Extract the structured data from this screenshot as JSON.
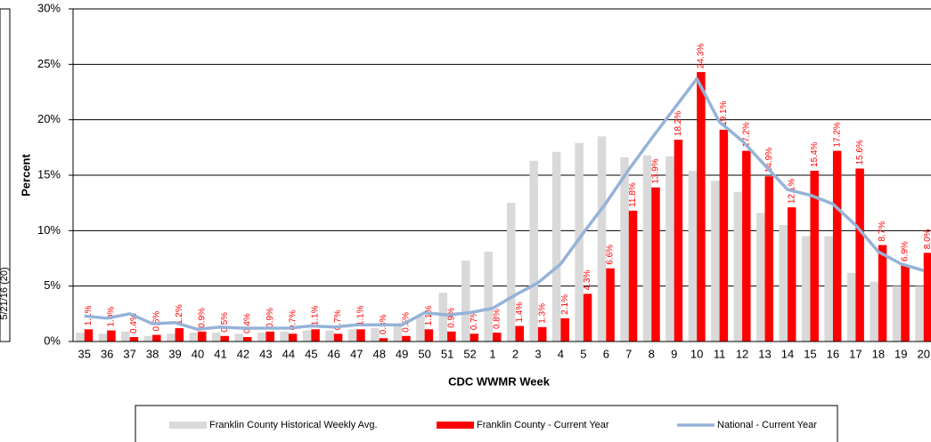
{
  "side_panel": {
    "label": "5/21/16 (20)"
  },
  "chart_data": {
    "type": "bar",
    "x_label": "CDC WWMR Week",
    "y_label": "Percent",
    "categories": [
      "35",
      "36",
      "37",
      "38",
      "39",
      "40",
      "41",
      "42",
      "43",
      "44",
      "45",
      "46",
      "47",
      "48",
      "49",
      "50",
      "51",
      "52",
      "1",
      "2",
      "3",
      "4",
      "5",
      "6",
      "7",
      "8",
      "9",
      "10",
      "11",
      "12",
      "13",
      "14",
      "15",
      "16",
      "17",
      "18",
      "19",
      "20"
    ],
    "ylim": [
      0,
      30
    ],
    "yticks": [
      {
        "value": 0,
        "label": "0%"
      },
      {
        "value": 5,
        "label": "5%"
      },
      {
        "value": 10,
        "label": "10%"
      },
      {
        "value": 15,
        "label": "15%"
      },
      {
        "value": 20,
        "label": "20%"
      },
      {
        "value": 25,
        "label": "25%"
      },
      {
        "value": 30,
        "label": "30%"
      }
    ],
    "grid": true,
    "series": [
      {
        "name": "Franklin County Historical Weekly Avg.",
        "color": "#d9d9d9",
        "kind": "bar",
        "values": [
          0.8,
          0.7,
          0.9,
          0.5,
          0.7,
          0.8,
          0.8,
          0.7,
          0.8,
          0.9,
          1.0,
          1.0,
          1.1,
          1.2,
          1.5,
          2.3,
          4.4,
          7.3,
          8.1,
          12.5,
          16.3,
          17.1,
          17.9,
          18.5,
          16.6,
          16.8,
          16.7,
          15.4,
          14.5,
          13.5,
          11.6,
          10.5,
          9.5,
          9.5,
          6.2,
          5.4,
          5.0,
          5.0
        ]
      },
      {
        "name": "Franklin County - Current Year",
        "color": "#ff0000",
        "kind": "bar",
        "values": [
          1.1,
          1.0,
          0.4,
          0.6,
          1.2,
          0.9,
          0.5,
          0.4,
          0.9,
          0.7,
          1.1,
          0.7,
          1.1,
          0.3,
          0.5,
          1.1,
          0.9,
          0.7,
          0.8,
          1.4,
          1.3,
          2.1,
          4.3,
          6.6,
          11.8,
          13.9,
          18.2,
          24.3,
          19.1,
          17.2,
          14.9,
          12.1,
          15.4,
          17.2,
          15.6,
          8.7,
          6.9,
          8.0
        ],
        "value_labels": [
          "1.1%",
          "1.0%",
          "0.4%",
          "0.6%",
          "1.2%",
          "0.9%",
          "0.5%",
          "0.4%",
          "0.9%",
          "0.7%",
          "1.1%",
          "0.7%",
          "1.1%",
          "0.3%",
          "0.5%",
          "1.1%",
          "0.9%",
          "0.7%",
          "0.8%",
          "1.4%",
          "1.3%",
          "2.1%",
          "4.3%",
          "6.6%",
          "11.8%",
          "13.9%",
          "18.2%",
          "24.3%",
          "19.1%",
          "17.2%",
          "14.9%",
          "12.1%",
          "15.4%",
          "17.2%",
          "15.6%",
          "8.7%",
          "6.9%",
          "8.0%"
        ]
      },
      {
        "name": "National - Current Year",
        "color": "#95b3d7",
        "kind": "line",
        "values": [
          2.3,
          2.1,
          2.5,
          1.6,
          1.7,
          1.1,
          1.3,
          1.2,
          1.2,
          1.2,
          1.4,
          1.3,
          1.5,
          1.5,
          1.5,
          2.6,
          2.4,
          2.6,
          3.0,
          4.2,
          5.3,
          7.0,
          9.8,
          12.5,
          15.5,
          18.3,
          21.0,
          23.7,
          19.8,
          18.1,
          15.9,
          13.7,
          13.2,
          12.4,
          10.5,
          8.1,
          7.0,
          6.4
        ]
      }
    ]
  }
}
